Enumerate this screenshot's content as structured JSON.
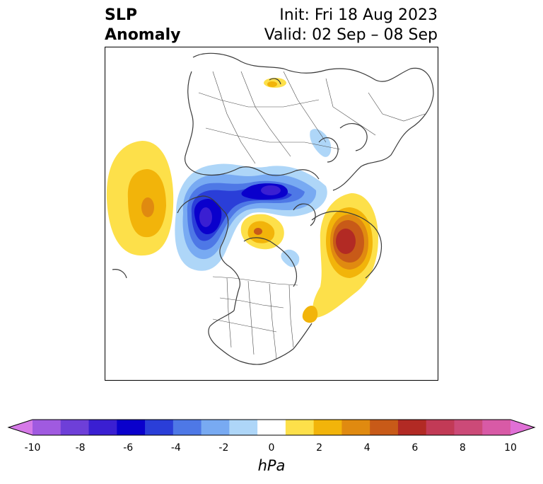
{
  "header": {
    "title_line1": "SLP",
    "title_line2": "Anomaly",
    "init_label": "Init: Fri 18 Aug 2023",
    "valid_label": "Valid: 02 Sep – 08 Sep"
  },
  "map": {
    "projection": "north-polar-stereographic",
    "features": [
      "coastlines",
      "country-borders",
      "us-state-borders"
    ],
    "anomaly_features": [
      {
        "name": "north-pacific-high",
        "sign": "positive",
        "peak_hpa": 4
      },
      {
        "name": "alaska-yukon-low",
        "sign": "negative",
        "peak_hpa": -6
      },
      {
        "name": "arctic-ocean-low",
        "sign": "negative",
        "peak_hpa": -6
      },
      {
        "name": "hudson-bay-high",
        "sign": "positive",
        "peak_hpa": 4
      },
      {
        "name": "north-atlantic-high",
        "sign": "positive",
        "peak_hpa": 7
      },
      {
        "name": "scandinavia-high",
        "sign": "positive",
        "peak_hpa": 1
      },
      {
        "name": "siberia-low",
        "sign": "negative",
        "peak_hpa": -1
      }
    ]
  },
  "colorbar": {
    "label": "hPa",
    "ticks": [
      "-10",
      "-8",
      "-6",
      "-4",
      "-2",
      "0",
      "2",
      "4",
      "6",
      "8",
      "10"
    ],
    "extend": "both",
    "colors": [
      "#d67ae8",
      "#a05ae0",
      "#6e3fd8",
      "#3a1fd2",
      "#0a00cc",
      "#2a3ed8",
      "#4e78e6",
      "#78aaf2",
      "#aed6f8",
      "#ffffff",
      "#fde04a",
      "#f2b40a",
      "#e08a10",
      "#c85a18",
      "#b22a24",
      "#c23a56",
      "#cc4a78",
      "#d85aa6",
      "#e070d6"
    ]
  }
}
